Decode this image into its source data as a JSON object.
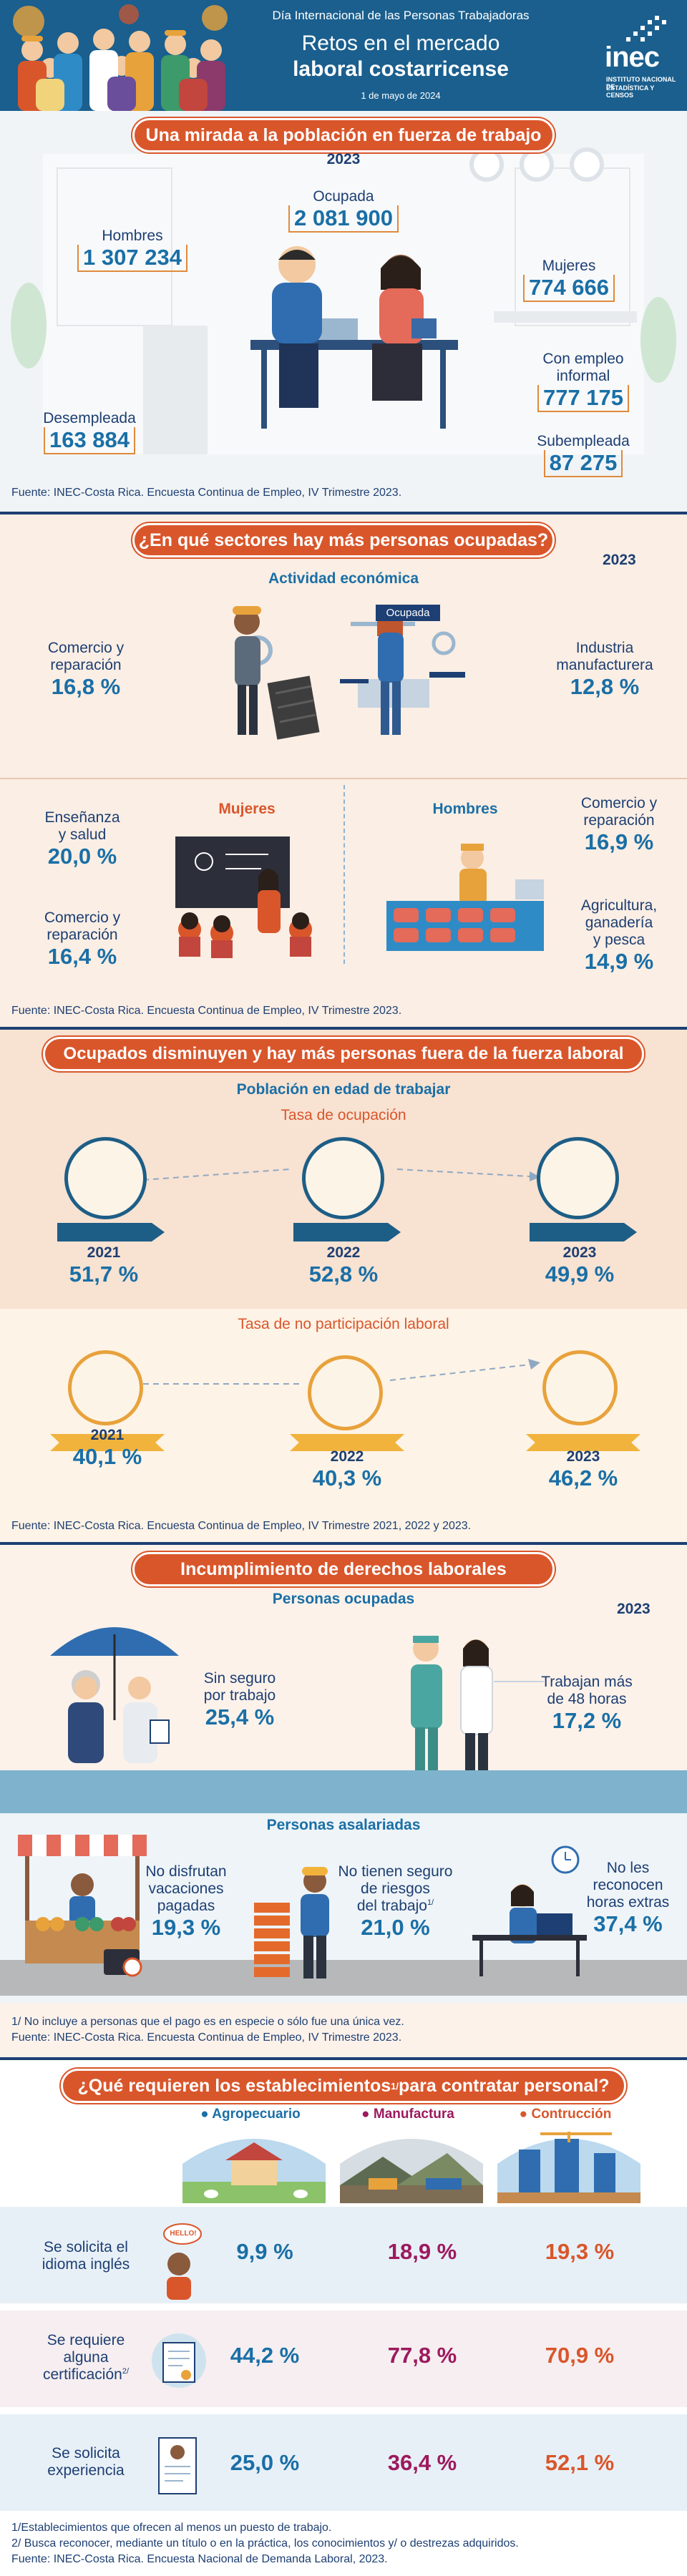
{
  "header": {
    "event": "Día Internacional de las Personas Trabajadoras",
    "title_line1": "Retos en el mercado",
    "title_line2": "laboral costarricense",
    "date": "1 de mayo de 2024",
    "logo_text": "inec",
    "logo_sub1": "INSTITUTO NACIONAL DE",
    "logo_sub2": "ESTADÍSTICA Y CENSOS"
  },
  "s1": {
    "title": "Una mirada a la población en fuerza de trabajo",
    "year": "2023",
    "ocupada_label": "Ocupada",
    "ocupada_value": "2 081 900",
    "hombres_label": "Hombres",
    "hombres_value": "1 307 234",
    "mujeres_label": "Mujeres",
    "mujeres_value": "774 666",
    "informal_label1": "Con empleo",
    "informal_label2": "informal",
    "informal_value": "777 175",
    "desempleada_label": "Desempleada",
    "desempleada_value": "163 884",
    "subempleada_label": "Subempleada",
    "subempleada_value": "87 275",
    "source": "Fuente: INEC-Costa Rica. Encuesta Continua de Empleo, IV Trimestre 2023."
  },
  "s2": {
    "title": "¿En qué sectores hay más personas ocupadas?",
    "year": "2023",
    "subtitle": "Actividad económica",
    "ocupada_label": "Ocupada",
    "left_label1": "Comercio y",
    "left_label2": "reparación",
    "left_value": "16,8 %",
    "right_label1": "Industria",
    "right_label2": "manufacturera",
    "right_value": "12,8 %",
    "mujeres_label": "Mujeres",
    "hombres_label": "Hombres",
    "m1_label1": "Enseñanza",
    "m1_label2": "y salud",
    "m1_value": "20,0 %",
    "m2_label1": "Comercio y",
    "m2_label2": "reparación",
    "m2_value": "16,4 %",
    "h1_label1": "Comercio y",
    "h1_label2": "reparación",
    "h1_value": "16,9 %",
    "h2_label1": "Agricultura,",
    "h2_label2": "ganadería",
    "h2_label3": "y pesca",
    "h2_value": "14,9 %",
    "source": "Fuente: INEC-Costa Rica. Encuesta Continua de Empleo, IV Trimestre 2023."
  },
  "s3": {
    "title": "Ocupados disminuyen y hay más personas fuera de la fuerza laboral",
    "subtitle": "Población en edad de trabajar",
    "tasa1": "Tasa de ocupación",
    "tasa2": "Tasa de no participación laboral",
    "ocupacion": [
      {
        "year": "2021",
        "value": "51,7 %"
      },
      {
        "year": "2022",
        "value": "52,8 %"
      },
      {
        "year": "2023",
        "value": "49,9 %"
      }
    ],
    "no_participacion": [
      {
        "year": "2021",
        "value": "40,1 %"
      },
      {
        "year": "2022",
        "value": "40,3 %"
      },
      {
        "year": "2023",
        "value": "46,2 %"
      }
    ],
    "source": "Fuente: INEC-Costa Rica. Encuesta Continua de Empleo, IV Trimestre 2021, 2022 y 2023."
  },
  "s4": {
    "title": "Incumplimiento de derechos laborales",
    "subtitle1": "Personas ocupadas",
    "year": "2023",
    "seguro_label1": "Sin seguro",
    "seguro_label2": "por trabajo",
    "seguro_value": "25,4 %",
    "horas_label1": "Trabajan más",
    "horas_label2": "de 48 horas",
    "horas_value": "17,2 %",
    "subtitle2": "Personas asalariadas",
    "vac_label1": "No disfrutan",
    "vac_label2": "vacaciones",
    "vac_label3": "pagadas",
    "vac_value": "19,3 %",
    "riesgo_label1": "No tienen seguro",
    "riesgo_label2": "de riesgos",
    "riesgo_label3": "del trabajo",
    "riesgo_sup": "1/",
    "riesgo_value": "21,0 %",
    "extra_label1": "No les",
    "extra_label2": "reconocen",
    "extra_label3": "horas extras",
    "extra_value": "37,4 %",
    "note": "1/ No incluye a personas que el pago es en especie o sólo fue una única vez.",
    "source": "Fuente: INEC-Costa Rica. Encuesta Continua de Empleo, IV Trimestre 2023."
  },
  "s5": {
    "title_part1": "¿Qué requieren los establecimientos",
    "title_sup": "1/",
    "title_part2": " para contratar personal?",
    "columns": [
      "Agropecuario",
      "Manufactura",
      "Contrucción"
    ],
    "rows": [
      {
        "label1": "Se solicita el",
        "label2": "idioma inglés",
        "label3": "",
        "sup": "",
        "values": [
          "9,9 %",
          "18,9 %",
          "19,3 %"
        ]
      },
      {
        "label1": "Se requiere",
        "label2": "alguna",
        "label3": "certificación",
        "sup": "2/",
        "values": [
          "44,2 %",
          "77,8 %",
          "70,9 %"
        ]
      },
      {
        "label1": "Se solicita",
        "label2": "experiencia",
        "label3": "",
        "sup": "",
        "values": [
          "25,0 %",
          "36,4 %",
          "52,1 %"
        ]
      }
    ],
    "hello_text": "HELLO!",
    "note1": "1/Establecimientos que ofrecen al menos un puesto de trabajo.",
    "note2": "2/ Busca reconocer, mediante un título o en la práctica, los conocimientos y/ o destrezas adquiridos.",
    "source": "Fuente: INEC-Costa Rica. Encuesta Nacional de Demanda Laboral, 2023."
  },
  "colors": {
    "navy": "#1d3f73",
    "teal": "#1a6fa6",
    "orange": "#d9562b",
    "agro": "#1a6fa6",
    "manuf": "#9c1a5e",
    "constr": "#d9562b"
  }
}
